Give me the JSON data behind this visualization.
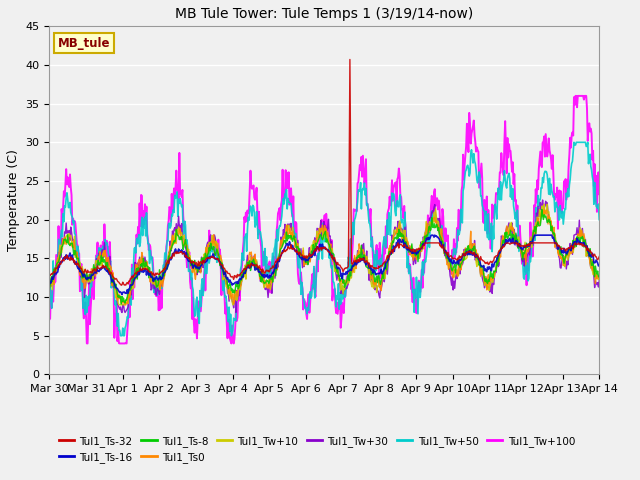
{
  "title": "MB Tule Tower: Tule Temps 1 (3/19/14-now)",
  "ylabel": "Temperature (C)",
  "ylim": [
    0,
    45
  ],
  "yticks": [
    0,
    5,
    10,
    15,
    20,
    25,
    30,
    35,
    40,
    45
  ],
  "bg_color": "#f0f0f0",
  "plot_bg_color": "#f0f0f0",
  "legend_box_color": "#ffffcc",
  "legend_box_edge": "#ccaa00",
  "legend_label_color": "#880000",
  "series": [
    {
      "label": "Tul1_Ts-32",
      "color": "#cc0000",
      "lw": 1.0
    },
    {
      "label": "Tul1_Ts-16",
      "color": "#0000cc",
      "lw": 1.2
    },
    {
      "label": "Tul1_Ts-8",
      "color": "#00cc00",
      "lw": 1.0
    },
    {
      "label": "Tul1_Ts0",
      "color": "#ff8800",
      "lw": 1.0
    },
    {
      "label": "Tul1_Tw+10",
      "color": "#cccc00",
      "lw": 1.0
    },
    {
      "label": "Tul1_Tw+30",
      "color": "#8800cc",
      "lw": 1.0
    },
    {
      "label": "Tul1_Tw+50",
      "color": "#00cccc",
      "lw": 1.2
    },
    {
      "label": "Tul1_Tw+100",
      "color": "#ff00ff",
      "lw": 1.4
    }
  ],
  "x_tick_labels": [
    "Mar 30",
    "Mar 31",
    "Apr 1",
    "Apr 2",
    "Apr 3",
    "Apr 4",
    "Apr 5",
    "Apr 6",
    "Apr 7",
    "Apr 8",
    "Apr 9",
    "Apr 10",
    "Apr 11",
    "Apr 12",
    "Apr 13",
    "Apr 14"
  ],
  "n_days": 15,
  "pts_per_day": 48,
  "watermark_text": "MB_tule"
}
